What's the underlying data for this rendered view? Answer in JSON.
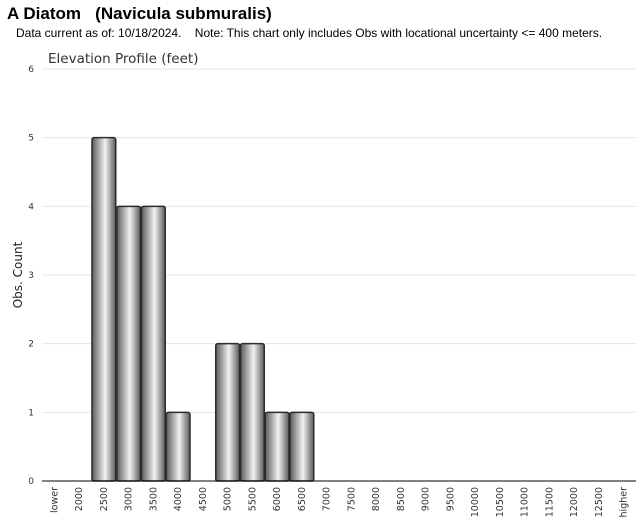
{
  "page": {
    "title": "A Diatom   (Navicula submuralis)",
    "subtitle": "Data current as of: 10/18/2024.    Note: This chart only includes Obs with locational uncertainty <= 400 meters."
  },
  "chart_data": {
    "type": "bar",
    "title": "Elevation Profile (feet)",
    "xlabel": "",
    "ylabel": "Obs. Count",
    "ylim": [
      0,
      6
    ],
    "yticks": [
      0,
      1,
      2,
      3,
      4,
      5,
      6
    ],
    "grid": true,
    "legend": "none",
    "categories": [
      "lower",
      "2000",
      "2500",
      "3000",
      "3500",
      "4000",
      "4500",
      "5000",
      "5500",
      "6000",
      "6500",
      "7000",
      "7500",
      "8000",
      "8500",
      "9000",
      "9500",
      "10000",
      "10500",
      "11000",
      "11500",
      "12000",
      "12500",
      "higher"
    ],
    "values": [
      0,
      0,
      5,
      4,
      4,
      1,
      0,
      2,
      2,
      1,
      1,
      0,
      0,
      0,
      0,
      0,
      0,
      0,
      0,
      0,
      0,
      0,
      0,
      0
    ],
    "colors": {
      "bar_dark": "#5a5a5a",
      "bar_light": "#f2f2f2",
      "bar_stroke": "#2b2b2b",
      "grid": "#e6e6e6",
      "axis": "#000000"
    }
  }
}
